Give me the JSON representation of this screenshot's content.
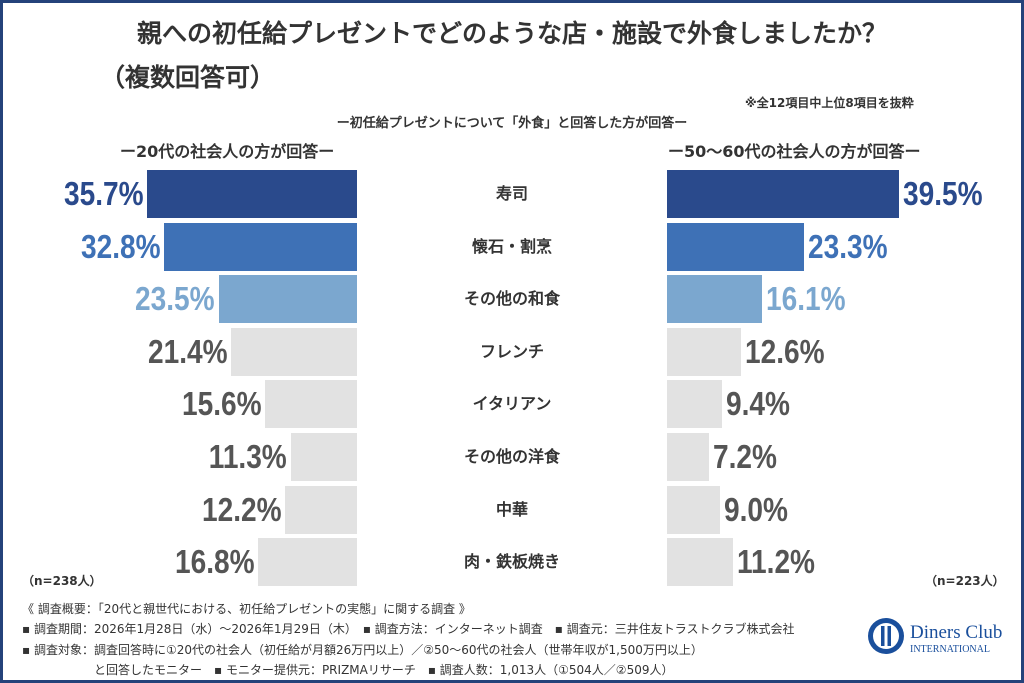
{
  "title": "親への初任給プレゼントでどのような店・施設で外食しましたか？",
  "title_line2": "（複数回答可）",
  "note": "※全12項目中上位8項目を抜粋",
  "subtitle": "ー初任給プレゼントについて「外食」と回答した方が回答ー",
  "chart_data": {
    "type": "bar",
    "categories": [
      "寿司",
      "懐石・割烹",
      "その他の和食",
      "フレンチ",
      "イタリアン",
      "その他の洋食",
      "中華",
      "肉・鉄板焼き"
    ],
    "series": [
      {
        "name": "ー20代の社会人の方が回答ー",
        "values": [
          35.7,
          32.8,
          23.5,
          21.4,
          15.6,
          11.3,
          12.2,
          16.8
        ],
        "labels": [
          "35.7%",
          "32.8%",
          "23.5%",
          "21.4%",
          "15.6%",
          "11.3%",
          "12.2%",
          "16.8%"
        ],
        "sample": "（n=238人）"
      },
      {
        "name": "ー50〜60代の社会人の方が回答ー",
        "values": [
          39.5,
          23.3,
          16.1,
          12.6,
          9.4,
          7.2,
          9.0,
          11.2
        ],
        "labels": [
          "39.5%",
          "23.3%",
          "16.1%",
          "12.6%",
          "9.4%",
          "7.2%",
          "9.0%",
          "11.2%"
        ],
        "sample": "（n=223人）"
      }
    ],
    "orientation": "horizontal-butterfly",
    "colors": {
      "rank1": "#2a4a8c",
      "rank2": "#3e71b6",
      "rank3": "#7ba7cf",
      "other": "#e2e2e2",
      "other_text": "#555555"
    }
  },
  "footer": [
    "《 調査概要：「20代と親世代における、初任給プレゼントの実態」に関する調査 》",
    "▪ 調査期間：2026年1月28日（水）〜2026年1月29日（木）　▪ 調査方法：インターネット調査　▪ 調査元：三井住友トラストクラブ株式会社",
    "▪ 調査対象：調査回答時に①20代の社会人（初任給が月額26万円以上）／②50〜60代の社会人（世帯年収が1,500万円以上）",
    "　　　　　　と回答したモニター　▪ モニター提供元：PRIZMAリサーチ　▪ 調査人数：1,013人（①504人／②509人）"
  ],
  "logo": {
    "text1": "Diners Club",
    "text2": "INTERNATIONAL",
    "color": "#1a4f9c"
  }
}
